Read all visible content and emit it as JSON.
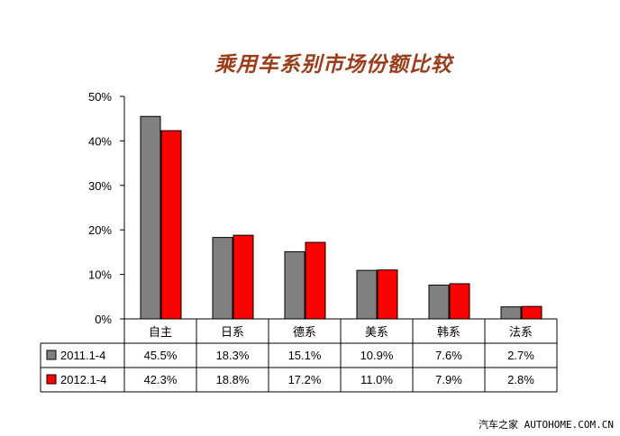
{
  "chart_data": {
    "type": "bar",
    "title": "乘用车系别市场份额比较",
    "categories": [
      "自主",
      "日系",
      "德系",
      "美系",
      "韩系",
      "法系"
    ],
    "series": [
      {
        "name": "2011.1-4",
        "color": "#808080",
        "values": [
          45.5,
          18.3,
          15.1,
          10.9,
          7.6,
          2.7
        ],
        "labels": [
          "45.5%",
          "18.3%",
          "15.1%",
          "10.9%",
          "7.6%",
          "2.7%"
        ]
      },
      {
        "name": "2012.1-4",
        "color": "#ff0000",
        "values": [
          42.3,
          18.8,
          17.2,
          11.0,
          7.9,
          2.8
        ],
        "labels": [
          "42.3%",
          "18.8%",
          "17.2%",
          "11.0%",
          "7.9%",
          "2.8%"
        ]
      }
    ],
    "ylim": [
      0,
      50
    ],
    "yticks": [
      "0%",
      "10%",
      "20%",
      "30%",
      "40%",
      "50%"
    ],
    "grid": false,
    "legend": "data-table"
  },
  "watermark": "汽车之家 AUTOHOME.COM.CN"
}
